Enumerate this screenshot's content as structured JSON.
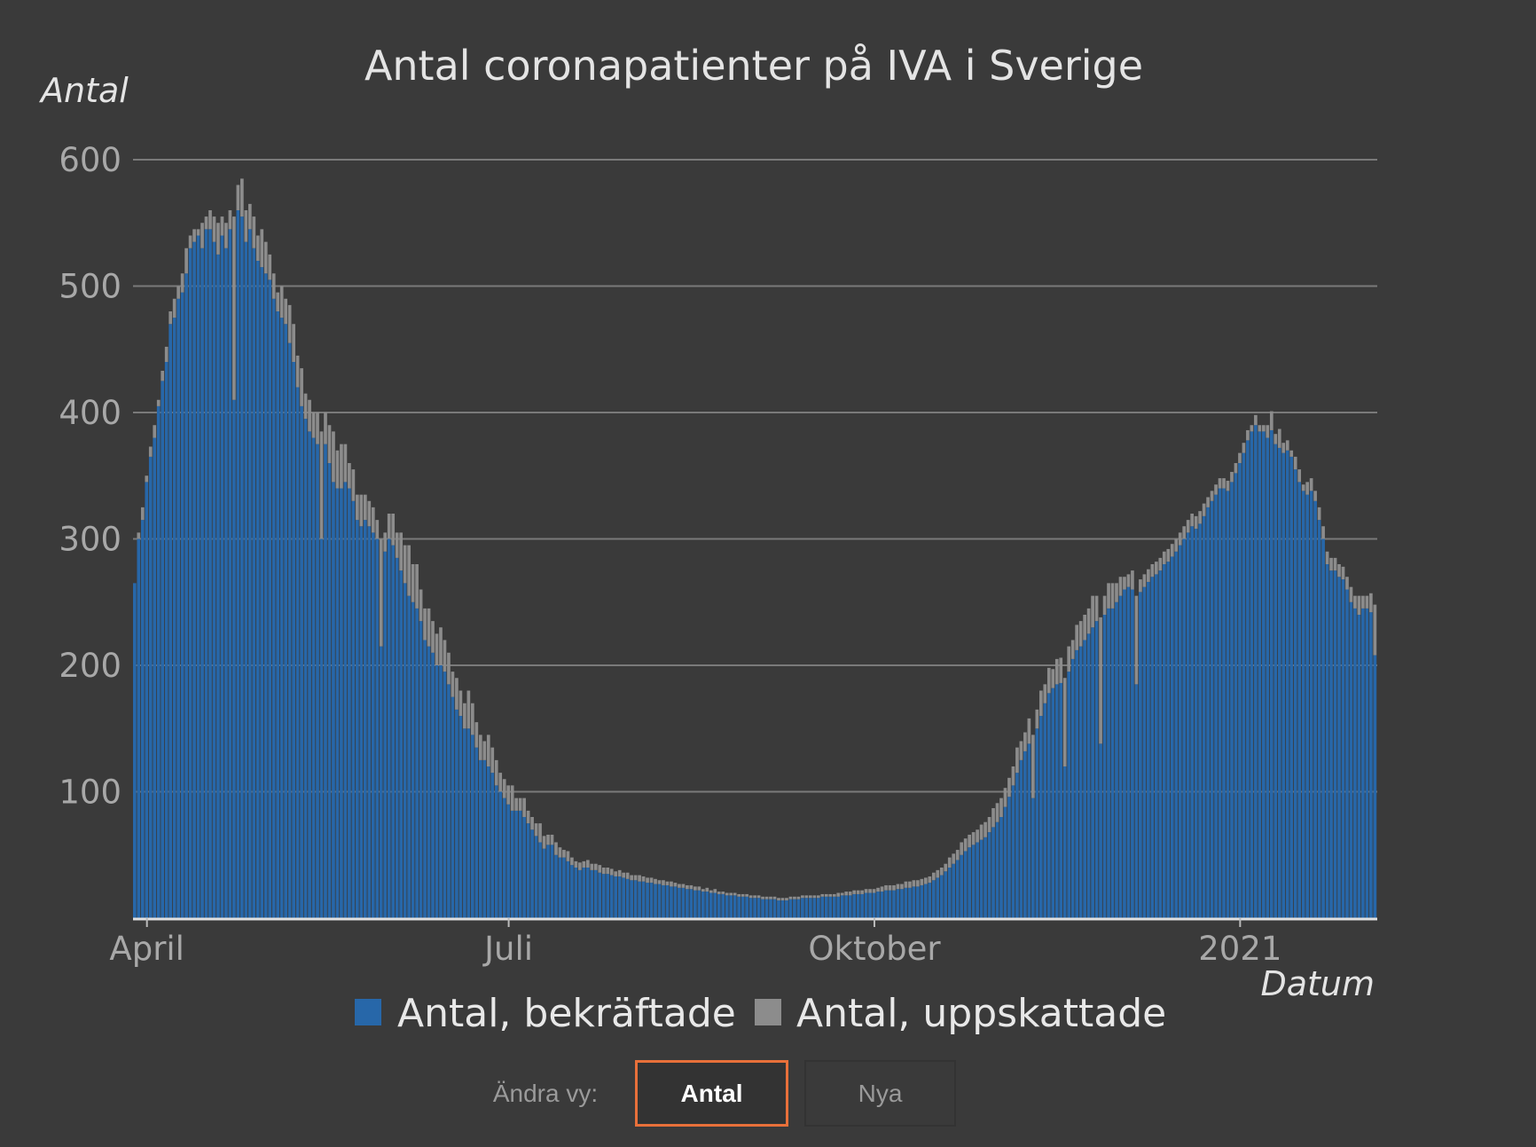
{
  "chart_data": {
    "type": "bar",
    "stacked": true,
    "title": "Antal coronapatienter på IVA i Sverige",
    "ylabel": "Antal",
    "xlabel": "Datum",
    "ylim": [
      0,
      600
    ],
    "yticks": [
      "100",
      "200",
      "300",
      "400",
      "500",
      "600"
    ],
    "xlim": [
      "2020-03-29",
      "2021-02-04"
    ],
    "xticks": [
      {
        "label": "April",
        "date": "2020-04-01"
      },
      {
        "label": "Juli",
        "date": "2020-07-01"
      },
      {
        "label": "Oktober",
        "date": "2020-10-01"
      },
      {
        "label": "2021",
        "date": "2021-01-01"
      }
    ],
    "grid": true,
    "legend_position": "bottom",
    "series": [
      {
        "name": "Antal, bekräftade",
        "color": "#2767a9",
        "values": [
          265,
          300,
          315,
          345,
          365,
          380,
          405,
          425,
          440,
          470,
          475,
          490,
          495,
          510,
          530,
          535,
          540,
          530,
          545,
          545,
          535,
          525,
          540,
          530,
          545,
          410,
          560,
          555,
          535,
          545,
          530,
          520,
          515,
          510,
          505,
          490,
          480,
          475,
          470,
          455,
          440,
          420,
          405,
          395,
          385,
          380,
          375,
          300,
          375,
          360,
          345,
          340,
          340,
          345,
          340,
          330,
          315,
          310,
          315,
          310,
          305,
          300,
          215,
          290,
          300,
          295,
          285,
          275,
          265,
          255,
          250,
          245,
          235,
          220,
          215,
          210,
          200,
          200,
          195,
          185,
          175,
          165,
          160,
          150,
          150,
          145,
          135,
          125,
          125,
          120,
          115,
          105,
          100,
          95,
          90,
          85,
          85,
          85,
          80,
          75,
          70,
          65,
          60,
          55,
          58,
          58,
          50,
          48,
          48,
          45,
          42,
          40,
          38,
          40,
          40,
          38,
          38,
          36,
          35,
          35,
          34,
          33,
          33,
          32,
          31,
          30,
          30,
          29,
          29,
          28,
          28,
          27,
          27,
          26,
          26,
          25,
          25,
          24,
          24,
          23,
          23,
          22,
          22,
          21,
          21,
          20,
          20,
          19,
          19,
          18,
          18,
          18,
          17,
          17,
          17,
          16,
          16,
          16,
          15,
          15,
          15,
          15,
          14,
          14,
          14,
          15,
          15,
          15,
          16,
          16,
          16,
          16,
          16,
          17,
          17,
          17,
          17,
          17,
          18,
          18,
          18,
          19,
          19,
          19,
          20,
          20,
          20,
          21,
          21,
          22,
          22,
          22,
          23,
          23,
          24,
          24,
          25,
          25,
          26,
          27,
          28,
          30,
          32,
          34,
          37,
          40,
          43,
          46,
          50,
          53,
          56,
          58,
          60,
          62,
          64,
          68,
          72,
          76,
          80,
          88,
          96,
          105,
          115,
          125,
          132,
          138,
          95,
          150,
          160,
          170,
          178,
          182,
          185,
          186,
          120,
          195,
          205,
          212,
          215,
          220,
          225,
          230,
          235,
          138,
          240,
          245,
          245,
          250,
          255,
          260,
          262,
          260,
          185,
          258,
          262,
          266,
          270,
          272,
          275,
          280,
          282,
          286,
          290,
          295,
          300,
          305,
          310,
          308,
          312,
          318,
          325,
          330,
          335,
          340,
          340,
          338,
          345,
          352,
          360,
          368,
          378,
          385,
          390,
          385,
          385,
          380,
          386,
          375,
          372,
          368,
          370,
          365,
          355,
          345,
          338,
          335,
          338,
          330,
          315,
          300,
          280,
          275,
          275,
          270,
          268,
          260,
          250,
          245,
          240,
          245,
          245,
          242,
          208
        ]
      },
      {
        "name": "Antal, uppskattade",
        "color": "#8c8c8c",
        "values": [
          0,
          5,
          10,
          5,
          8,
          10,
          5,
          8,
          12,
          10,
          15,
          10,
          15,
          20,
          10,
          10,
          5,
          20,
          10,
          15,
          20,
          25,
          15,
          20,
          15,
          145,
          20,
          30,
          25,
          20,
          25,
          20,
          30,
          25,
          20,
          20,
          15,
          25,
          20,
          30,
          30,
          25,
          30,
          20,
          25,
          20,
          25,
          85,
          25,
          30,
          40,
          30,
          35,
          30,
          20,
          25,
          20,
          25,
          20,
          20,
          20,
          15,
          85,
          15,
          20,
          25,
          20,
          30,
          30,
          40,
          30,
          35,
          25,
          25,
          30,
          25,
          25,
          30,
          25,
          25,
          20,
          25,
          20,
          20,
          30,
          25,
          20,
          20,
          15,
          25,
          20,
          20,
          15,
          15,
          15,
          20,
          10,
          10,
          15,
          10,
          10,
          10,
          15,
          10,
          8,
          8,
          10,
          8,
          6,
          8,
          6,
          5,
          6,
          5,
          6,
          5,
          5,
          6,
          5,
          5,
          5,
          4,
          5,
          4,
          5,
          4,
          4,
          5,
          4,
          4,
          4,
          4,
          3,
          4,
          3,
          4,
          3,
          3,
          3,
          3,
          3,
          3,
          3,
          2,
          3,
          2,
          3,
          2,
          2,
          2,
          2,
          2,
          2,
          2,
          2,
          2,
          2,
          2,
          2,
          2,
          2,
          2,
          2,
          2,
          2,
          2,
          2,
          2,
          2,
          2,
          2,
          2,
          2,
          2,
          2,
          2,
          2,
          3,
          2,
          3,
          3,
          3,
          3,
          3,
          3,
          3,
          3,
          3,
          4,
          4,
          4,
          4,
          4,
          4,
          5,
          5,
          5,
          5,
          5,
          5,
          5,
          6,
          6,
          6,
          6,
          8,
          8,
          8,
          10,
          10,
          10,
          10,
          10,
          12,
          12,
          12,
          15,
          15,
          15,
          15,
          15,
          15,
          20,
          15,
          15,
          20,
          50,
          15,
          20,
          15,
          20,
          15,
          20,
          20,
          70,
          20,
          15,
          20,
          20,
          20,
          20,
          25,
          20,
          100,
          15,
          20,
          20,
          15,
          15,
          10,
          10,
          15,
          70,
          10,
          10,
          10,
          10,
          10,
          10,
          10,
          10,
          10,
          10,
          10,
          10,
          10,
          10,
          10,
          10,
          10,
          8,
          8,
          8,
          8,
          8,
          8,
          8,
          8,
          8,
          8,
          8,
          5,
          8,
          5,
          5,
          10,
          15,
          8,
          15,
          8,
          8,
          5,
          10,
          10,
          5,
          10,
          10,
          8,
          10,
          10,
          10,
          10,
          10,
          10,
          10,
          10,
          12,
          10,
          15,
          10,
          10,
          15,
          40
        ]
      }
    ]
  },
  "controls": {
    "label": "Ändra vy:",
    "buttons": [
      {
        "label": "Antal",
        "active": true,
        "accent": "#e8703a"
      },
      {
        "label": "Nya",
        "active": false
      }
    ]
  }
}
